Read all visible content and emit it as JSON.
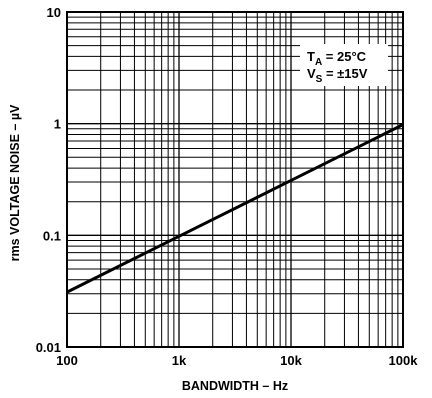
{
  "chart_data": {
    "type": "line",
    "title": "",
    "xlabel": "BANDWIDTH – Hz",
    "ylabel": "rms  VOLTAGE NOISE – µV",
    "x_scale": "log",
    "y_scale": "log",
    "xlim": [
      100,
      100000
    ],
    "ylim": [
      0.01,
      10
    ],
    "x_tick_labels": [
      "100",
      "1k",
      "10k",
      "100k"
    ],
    "x_tick_values": [
      100,
      1000,
      10000,
      100000
    ],
    "y_tick_labels": [
      "0.01",
      "0.1",
      "1",
      "10"
    ],
    "y_tick_values": [
      0.01,
      0.1,
      1,
      10
    ],
    "grid": true,
    "annotations": {
      "ta_main": "T",
      "ta_sub": "A",
      "ta_rest": " = 25°C",
      "vs_main": "V",
      "vs_sub": "S",
      "vs_rest": " = ±15V"
    },
    "series": [
      {
        "x": [
          100,
          1000,
          10000,
          100000
        ],
        "y": [
          0.031,
          0.098,
          0.31,
          0.98
        ]
      }
    ]
  }
}
